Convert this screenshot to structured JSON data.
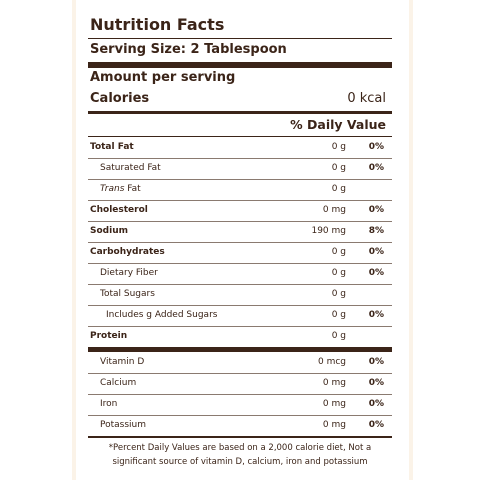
{
  "label": {
    "title": "Nutrition Facts",
    "serving_size": "Serving Size: 2 Tablespoon",
    "amount_per_serving": "Amount per serving",
    "calories_label": "Calories",
    "calories_value": "0 kcal",
    "daily_value_header": "% Daily Value",
    "rows": [
      {
        "label": "Total Fat",
        "amount": "0 g",
        "dv": "0%"
      },
      {
        "label": "Saturated Fat",
        "amount": "0 g",
        "dv": "0%"
      },
      {
        "label_italic": "Trans",
        "label_rest": " Fat",
        "amount": "0 g",
        "dv": ""
      },
      {
        "label": "Cholesterol",
        "amount": "0 mg",
        "dv": "0%"
      },
      {
        "label": "Sodium",
        "amount": "190 mg",
        "dv": "8%"
      },
      {
        "label": "Carbohydrates",
        "amount": "0 g",
        "dv": "0%"
      },
      {
        "label": "Dietary Fiber",
        "amount": "0 g",
        "dv": "0%"
      },
      {
        "label": "Total Sugars",
        "amount": "0 g",
        "dv": ""
      },
      {
        "label": "Includes g Added Sugars",
        "amount": "0 g",
        "dv": "0%"
      },
      {
        "label": "Protein",
        "amount": "0 g",
        "dv": ""
      },
      {
        "label": "Vitamin D",
        "amount": "0 mcg",
        "dv": "0%"
      },
      {
        "label": "Calcium",
        "amount": "0 mg",
        "dv": "0%"
      },
      {
        "label": "Iron",
        "amount": "0 mg",
        "dv": "0%"
      },
      {
        "label": "Potassium",
        "amount": "0 mg",
        "dv": "0%"
      }
    ],
    "footnote": "*Percent Daily Values are based on a 2,000 calorie diet, Not a significant source of vitamin D, calcium, iron and potassium"
  }
}
